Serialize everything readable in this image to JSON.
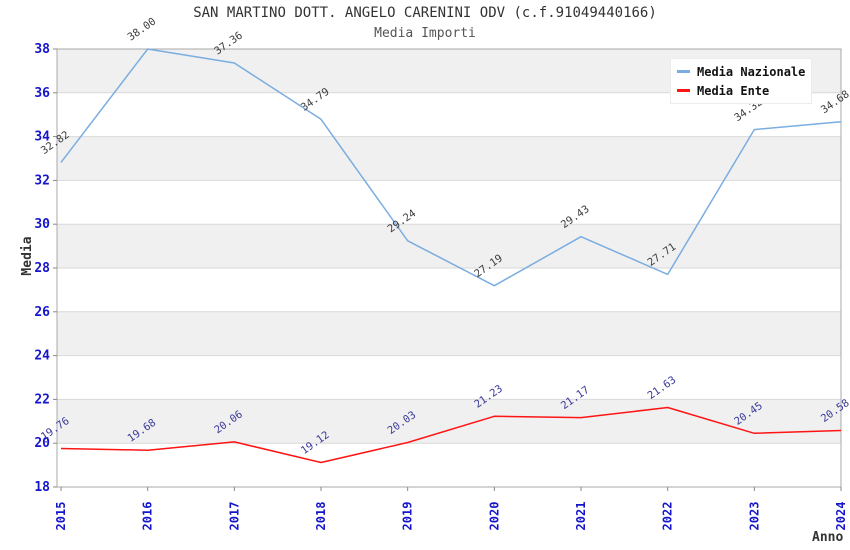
{
  "chart": {
    "title": "SAN MARTINO DOTT. ANGELO CARENINI ODV (c.f.91049440166)",
    "subtitle": "Media Importi",
    "xlabel": "Anno",
    "ylabel": "Media"
  },
  "chart_data": {
    "type": "line",
    "title": "Media Importi",
    "xlabel": "Anno",
    "ylabel": "Media",
    "x": [
      2015,
      2016,
      2017,
      2018,
      2019,
      2020,
      2021,
      2022,
      2023,
      2024
    ],
    "series": [
      {
        "name": "Media Nazionale",
        "color": "#7aade0",
        "label_color": "#3d3d3d",
        "values": [
          32.82,
          38.0,
          37.36,
          34.79,
          29.24,
          27.19,
          29.43,
          27.71,
          34.32,
          34.68
        ]
      },
      {
        "name": "Media Ente",
        "color": "#ff1414",
        "label_color": "#3a3a99",
        "values": [
          19.76,
          19.68,
          20.06,
          19.12,
          20.03,
          21.23,
          21.17,
          21.63,
          20.45,
          20.58
        ]
      }
    ],
    "ylim": [
      18,
      38
    ],
    "ytick_step": 2,
    "grid": "horizontal-bands",
    "band_color": "#f0f0f0",
    "gridline_color": "#d9d9d9",
    "plot_border_color": "#a9a9a9",
    "tick_color": "#888888",
    "tick_label_color": "#1515cc",
    "legend_position": "top-right",
    "value_label_decimals": 2
  },
  "legend": {
    "items": [
      {
        "label": "Media Nazionale",
        "color": "#7aade0"
      },
      {
        "label": "Media Ente",
        "color": "#ff1414"
      }
    ]
  }
}
